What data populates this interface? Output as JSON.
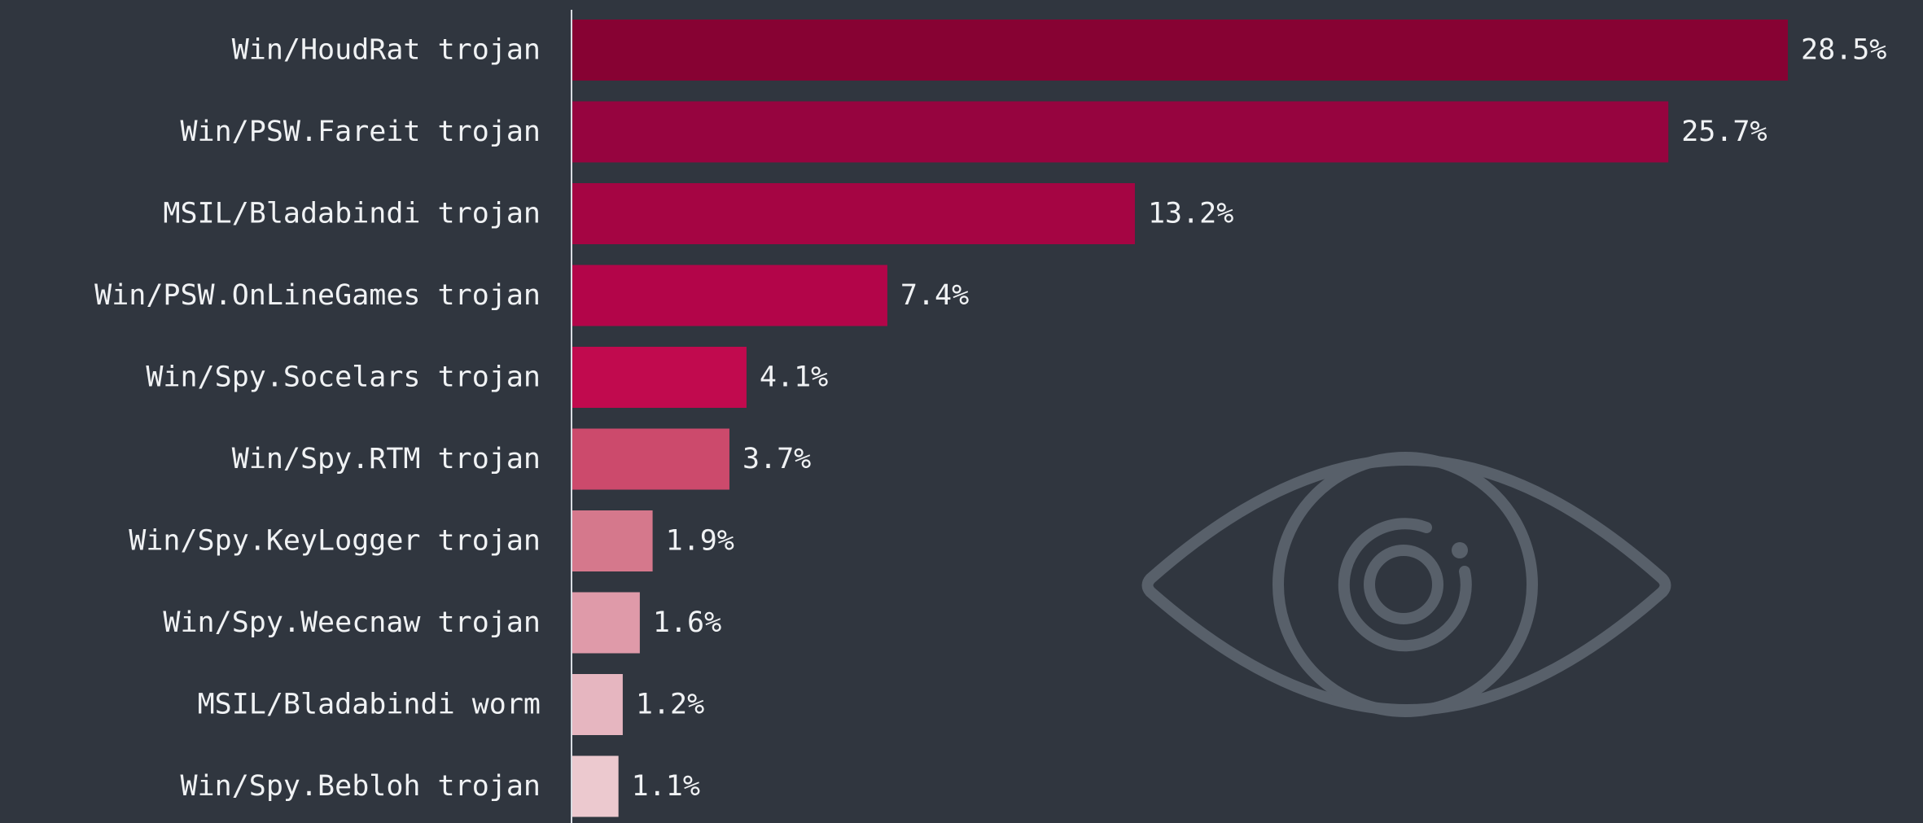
{
  "chart_data": {
    "type": "bar",
    "orientation": "horizontal",
    "categories": [
      "Win/HoudRat trojan",
      "Win/PSW.Fareit trojan",
      "MSIL/Bladabindi trojan",
      "Win/PSW.OnLineGames trojan",
      "Win/Spy.Socelars trojan",
      "Win/Spy.RTM trojan",
      "Win/Spy.KeyLogger trojan",
      "Win/Spy.Weecnaw trojan",
      "MSIL/Bladabindi worm",
      "Win/Spy.Bebloh trojan"
    ],
    "values": [
      28.5,
      25.7,
      13.2,
      7.4,
      4.1,
      3.7,
      1.9,
      1.6,
      1.2,
      1.1
    ],
    "value_labels": [
      "28.5%",
      "25.7%",
      "13.2%",
      "7.4%",
      "4.1%",
      "3.7%",
      "1.9%",
      "1.6%",
      "1.2%",
      "1.1%"
    ],
    "bar_colors": [
      "#870233",
      "#96043f",
      "#a50543",
      "#b30549",
      "#c10a4e",
      "#cc4a6c",
      "#d5788c",
      "#df9aa9",
      "#e6b6c0",
      "#ecc9cf"
    ],
    "xlim": [
      0,
      28.5
    ],
    "grid": false,
    "title": "",
    "xlabel": "",
    "ylabel": ""
  },
  "decoration": {
    "icon": "eye-icon",
    "icon_color": "#58606a"
  },
  "colors": {
    "background": "#30363f",
    "text": "#f0f2f4",
    "axis": "#d8dce2"
  }
}
